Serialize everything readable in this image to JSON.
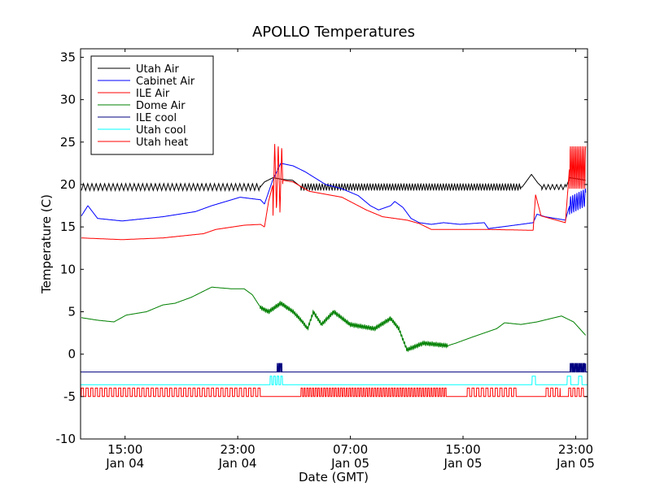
{
  "chart_data": {
    "type": "line",
    "title": "APOLLO Temperatures",
    "xlabel": "Date (GMT)",
    "ylabel": "Temperature (C)",
    "x_units": "hours since Jan 04 00:00 GMT",
    "xlim": [
      11.84,
      47.84
    ],
    "ylim": [
      -10,
      36
    ],
    "yticks": [
      -10,
      -5,
      0,
      5,
      10,
      15,
      20,
      25,
      30,
      35
    ],
    "xticks": [
      {
        "value": 15,
        "line1": "15:00",
        "line2": "Jan 04"
      },
      {
        "value": 23,
        "line1": "23:00",
        "line2": "Jan 04"
      },
      {
        "value": 31,
        "line1": "07:00",
        "line2": "Jan 05"
      },
      {
        "value": 39,
        "line1": "15:00",
        "line2": "Jan 05"
      },
      {
        "value": 47,
        "line1": "23:00",
        "line2": "Jan 05"
      }
    ],
    "grid": false,
    "legend_position": "top-left",
    "series": [
      {
        "name": "Utah Air",
        "color": "#000000",
        "points": [
          [
            11.9,
            19.7
          ],
          [
            24.6,
            19.7
          ],
          [
            24.9,
            20.3
          ],
          [
            25.5,
            20.8
          ],
          [
            26.2,
            20.6
          ],
          [
            26.9,
            20.5
          ],
          [
            27.5,
            19.7
          ],
          [
            43.2,
            19.7
          ],
          [
            43.86,
            21.2
          ],
          [
            44.3,
            20.2
          ],
          [
            44.6,
            19.7
          ],
          [
            46.3,
            19.7
          ],
          [
            46.6,
            20.8
          ],
          [
            47.72,
            20.5
          ]
        ],
        "oscillations": [
          {
            "from": 11.9,
            "to": 24.6,
            "period": 0.3,
            "amplitude": 0.4,
            "shape": "triangle"
          },
          {
            "from": 27.5,
            "to": 43.1,
            "period": 0.2,
            "amplitude": 0.4,
            "shape": "triangle"
          },
          {
            "from": 44.6,
            "to": 46.3,
            "period": 0.3,
            "amplitude": 0.3,
            "shape": "triangle"
          }
        ]
      },
      {
        "name": "Cabinet Air",
        "color": "#0000ff",
        "points": [
          [
            11.9,
            16.3
          ],
          [
            12.36,
            17.5
          ],
          [
            13.05,
            16.0
          ],
          [
            14.79,
            15.7
          ],
          [
            17.68,
            16.2
          ],
          [
            19.99,
            16.8
          ],
          [
            21.15,
            17.5
          ],
          [
            23.17,
            18.5
          ],
          [
            24.62,
            18.2
          ],
          [
            24.9,
            17.7
          ],
          [
            25.48,
            20.5
          ],
          [
            26.06,
            22.5
          ],
          [
            26.93,
            22.2
          ],
          [
            27.79,
            21.5
          ],
          [
            29.24,
            20.0
          ],
          [
            30.4,
            19.5
          ],
          [
            31.55,
            18.7
          ],
          [
            32.42,
            17.5
          ],
          [
            33.0,
            17.0
          ],
          [
            33.86,
            17.5
          ],
          [
            34.15,
            18.0
          ],
          [
            34.73,
            17.3
          ],
          [
            35.31,
            16.0
          ],
          [
            35.89,
            15.5
          ],
          [
            36.75,
            15.3
          ],
          [
            37.62,
            15.5
          ],
          [
            38.78,
            15.3
          ],
          [
            40.51,
            15.5
          ],
          [
            40.8,
            14.8
          ],
          [
            43.11,
            15.3
          ],
          [
            43.98,
            15.5
          ],
          [
            44.25,
            16.5
          ],
          [
            44.83,
            16.2
          ],
          [
            46.27,
            15.8
          ],
          [
            46.56,
            17.5
          ],
          [
            47.72,
            18.5
          ]
        ],
        "oscillations": [
          {
            "from": 46.56,
            "to": 47.72,
            "period": 0.15,
            "amplitude": 1.2,
            "shape": "triangle"
          }
        ]
      },
      {
        "name": "ILE Air",
        "color": "#ff0000",
        "points": [
          [
            11.9,
            13.7
          ],
          [
            14.79,
            13.5
          ],
          [
            17.68,
            13.7
          ],
          [
            20.57,
            14.2
          ],
          [
            21.44,
            14.7
          ],
          [
            23.46,
            15.2
          ],
          [
            24.62,
            15.3
          ],
          [
            24.9,
            15.0
          ],
          [
            25.19,
            18.0
          ],
          [
            25.66,
            21.0
          ],
          [
            26.23,
            20.5
          ],
          [
            26.93,
            20.3
          ],
          [
            28.08,
            19.2
          ],
          [
            30.4,
            18.5
          ],
          [
            32.13,
            17.0
          ],
          [
            33.29,
            16.2
          ],
          [
            35.02,
            15.8
          ],
          [
            35.89,
            15.4
          ],
          [
            36.75,
            14.7
          ],
          [
            40.8,
            14.7
          ],
          [
            43.98,
            14.6
          ],
          [
            44.15,
            18.8
          ],
          [
            44.54,
            16.3
          ],
          [
            46.27,
            15.5
          ],
          [
            46.56,
            22.0
          ],
          [
            47.72,
            22.0
          ]
        ],
        "oscillations": [
          {
            "from": 25.5,
            "to": 26.2,
            "period": 0.25,
            "amplitude": 4,
            "shape": "triangle"
          },
          {
            "from": 46.56,
            "to": 47.72,
            "period": 0.12,
            "amplitude": 3,
            "shape": "triangle"
          }
        ]
      },
      {
        "name": "Dome Air",
        "color": "#008000",
        "points": [
          [
            11.9,
            4.3
          ],
          [
            13.05,
            4.0
          ],
          [
            14.21,
            3.8
          ],
          [
            15.08,
            4.6
          ],
          [
            16.52,
            5.0
          ],
          [
            17.68,
            5.8
          ],
          [
            18.55,
            6.0
          ],
          [
            19.7,
            6.7
          ],
          [
            21.15,
            7.9
          ],
          [
            22.59,
            7.7
          ],
          [
            23.46,
            7.7
          ],
          [
            24.04,
            7.0
          ],
          [
            24.62,
            5.5
          ],
          [
            25.19,
            5.0
          ],
          [
            26.06,
            6.0
          ],
          [
            26.93,
            5.0
          ],
          [
            27.5,
            4.0
          ],
          [
            27.97,
            3.0
          ],
          [
            28.37,
            5.0
          ],
          [
            28.95,
            3.5
          ],
          [
            29.82,
            5.0
          ],
          [
            30.97,
            3.5
          ],
          [
            32.71,
            3.0
          ],
          [
            33.86,
            4.2
          ],
          [
            34.44,
            3.0
          ],
          [
            35.02,
            0.5
          ],
          [
            36.18,
            1.3
          ],
          [
            37.91,
            1.0
          ],
          [
            38.49,
            1.3
          ],
          [
            39.64,
            2.0
          ],
          [
            41.38,
            3.0
          ],
          [
            41.95,
            3.7
          ],
          [
            43.11,
            3.5
          ],
          [
            44.25,
            3.8
          ],
          [
            45.99,
            4.5
          ],
          [
            46.85,
            3.8
          ],
          [
            47.72,
            2.2
          ]
        ],
        "oscillations": [
          {
            "from": 24.6,
            "to": 37.9,
            "period": 0.1,
            "amplitude": 0.25,
            "shape": "triangle"
          }
        ]
      },
      {
        "name": "ILE cool",
        "color": "#000080",
        "points": [
          [
            11.84,
            -2.1
          ],
          [
            47.84,
            -2.1
          ]
        ],
        "oscillations": [
          {
            "from": 25.8,
            "to": 26.2,
            "period": 0.1,
            "amplitude": 1,
            "shape": "square"
          },
          {
            "from": 46.6,
            "to": 47.72,
            "period": 0.1,
            "amplitude": 1,
            "shape": "square"
          }
        ]
      },
      {
        "name": "Utah cool",
        "color": "#00ffff",
        "points": [
          [
            11.84,
            -3.6
          ],
          [
            47.84,
            -3.6
          ]
        ],
        "oscillations": [
          {
            "from": 25.3,
            "to": 26.2,
            "period": 0.25,
            "amplitude": 1,
            "shape": "square"
          },
          {
            "from": 43.9,
            "to": 44.15,
            "period": 0.5,
            "amplitude": 1,
            "shape": "square"
          },
          {
            "from": 46.4,
            "to": 46.8,
            "period": 0.5,
            "amplitude": 1,
            "shape": "square"
          },
          {
            "from": 47.2,
            "to": 47.5,
            "period": 0.5,
            "amplitude": 1,
            "shape": "square"
          }
        ]
      },
      {
        "name": "Utah heat",
        "color": "#ff0000",
        "points": [
          [
            11.84,
            -5.0
          ],
          [
            47.84,
            -5.0
          ]
        ],
        "oscillations": [
          {
            "from": 11.9,
            "to": 24.7,
            "period": 0.33,
            "amplitude": 1,
            "shape": "square"
          },
          {
            "from": 27.5,
            "to": 37.9,
            "period": 0.2,
            "amplitude": 1,
            "shape": "square"
          },
          {
            "from": 39.3,
            "to": 42.9,
            "period": 0.33,
            "amplitude": 1,
            "shape": "square"
          },
          {
            "from": 44.9,
            "to": 45.9,
            "period": 0.33,
            "amplitude": 1,
            "shape": "square"
          },
          {
            "from": 46.5,
            "to": 47.7,
            "period": 0.3,
            "amplitude": 1,
            "shape": "square"
          }
        ]
      }
    ]
  }
}
